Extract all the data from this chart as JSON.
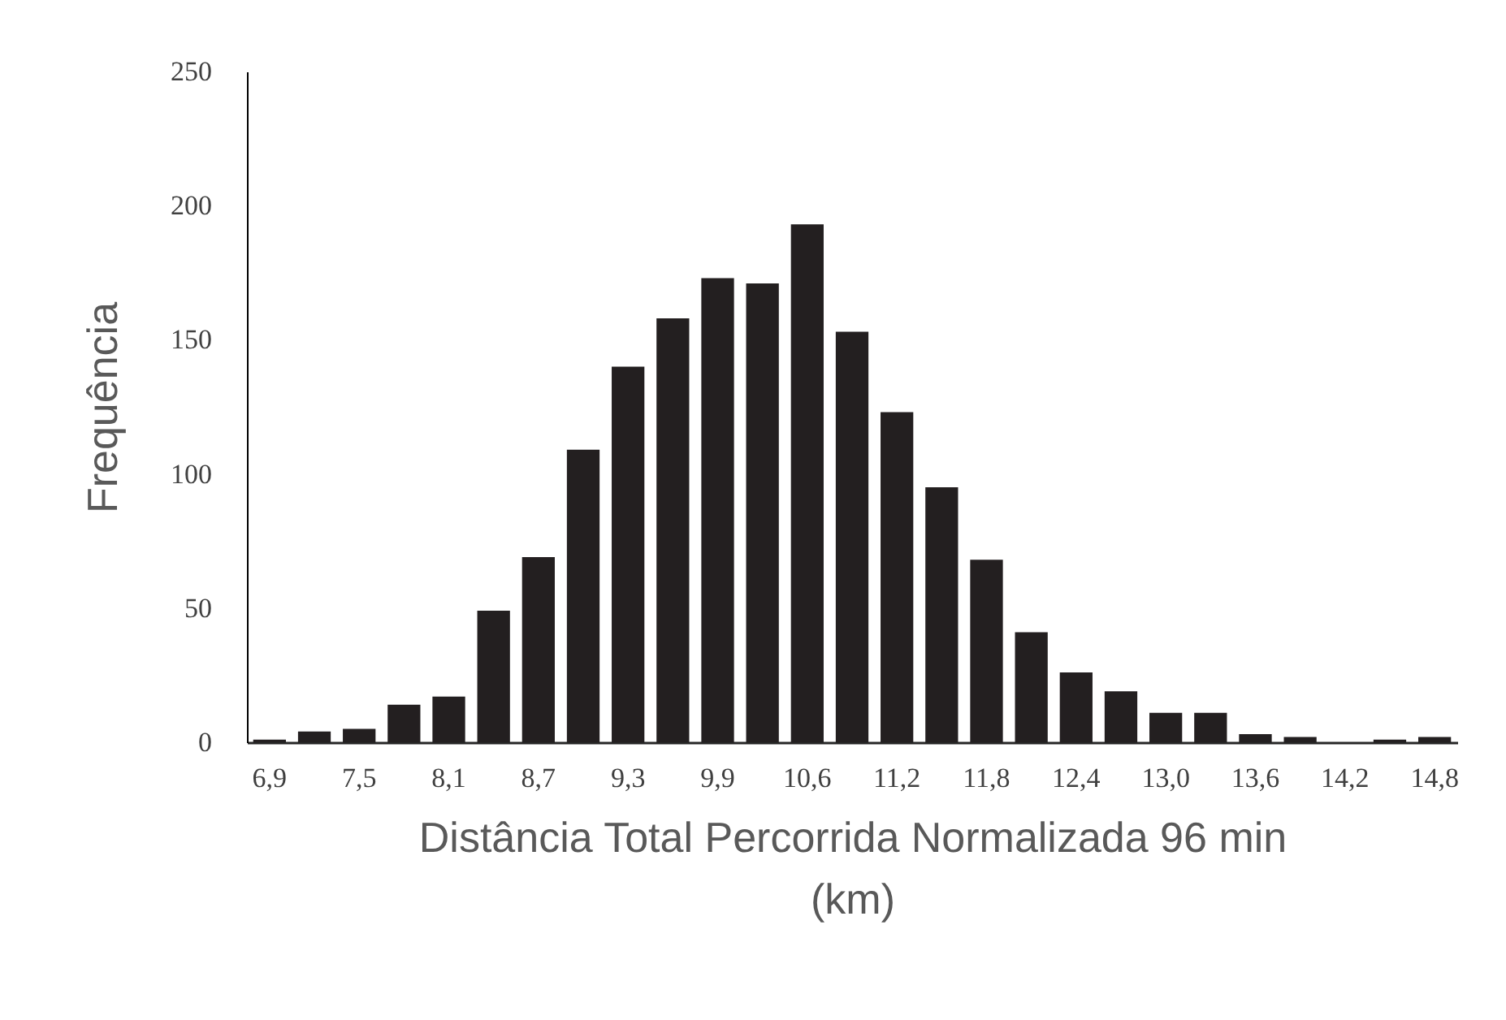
{
  "chart_data": {
    "type": "bar",
    "xlabel": "Distância Total Percorrida Normalizada 96 min\n(km)",
    "ylabel": "Frequência",
    "categories": [
      "6,9",
      null,
      "7,5",
      null,
      "8,1",
      null,
      "8,7",
      null,
      "9,3",
      null,
      "9,9",
      null,
      "10,6",
      null,
      "11,2",
      null,
      "11,8",
      null,
      "12,4",
      null,
      "13,0",
      null,
      "13,6",
      null,
      "14,2",
      null,
      "14,8"
    ],
    "values": [
      1,
      4,
      5,
      14,
      17,
      49,
      69,
      109,
      140,
      158,
      173,
      171,
      193,
      153,
      123,
      95,
      68,
      41,
      26,
      19,
      11,
      11,
      3,
      2,
      0,
      1,
      2
    ],
    "color": "#231f20",
    "ylim": [
      0,
      250
    ],
    "yticks": [
      0,
      50,
      100,
      150,
      200,
      250
    ],
    "grid": false
  }
}
